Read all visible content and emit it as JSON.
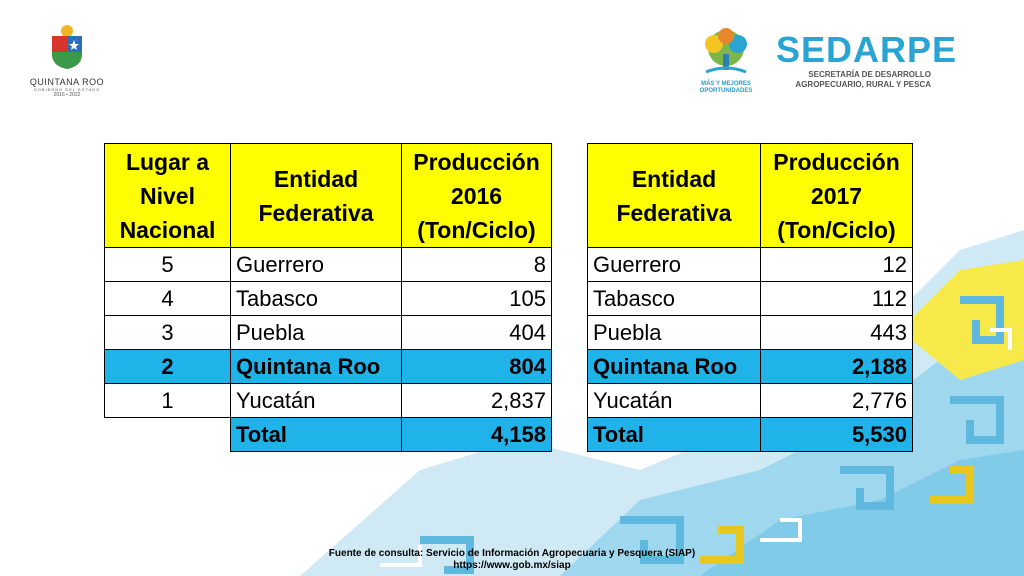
{
  "logos": {
    "left_name": "QUINTANA ROO",
    "left_sub": "GOBIERNO DEL ESTADO",
    "left_years": "2016 • 2022",
    "tree_line1": "MÁS Y MEJORES",
    "tree_line2": "OPORTUNIDADES",
    "sedarpe_title": "SEDARPE",
    "sedarpe_line1": "SECRETARÍA DE DESARROLLO",
    "sedarpe_line2": "AGROPECUARIO, RURAL Y PESCA"
  },
  "table2016": {
    "headers": [
      "Lugar a Nivel Nacional",
      "Entidad Federativa",
      "Producción 2016 (Ton/Ciclo)"
    ],
    "rows": [
      {
        "rank": "5",
        "entity": "Guerrero",
        "value": "8"
      },
      {
        "rank": "4",
        "entity": "Tabasco",
        "value": "105"
      },
      {
        "rank": "3",
        "entity": "Puebla",
        "value": "404"
      },
      {
        "rank": "2",
        "entity": "Quintana Roo",
        "value": "804"
      },
      {
        "rank": "1",
        "entity": "Yucatán",
        "value": "2,837"
      }
    ],
    "total_label": "Total",
    "total_value": "4,158"
  },
  "table2017": {
    "headers": [
      "Entidad Federativa",
      "Producción 2017 (Ton/Ciclo)"
    ],
    "rows": [
      {
        "entity": "Guerrero",
        "value": "12"
      },
      {
        "entity": "Tabasco",
        "value": "112"
      },
      {
        "entity": "Puebla",
        "value": "443"
      },
      {
        "entity": "Quintana Roo",
        "value": "2,188"
      },
      {
        "entity": "Yucatán",
        "value": "2,776"
      }
    ],
    "total_label": "Total",
    "total_value": "5,530"
  },
  "source": {
    "line1": "Fuente de consulta: Servicio de Información Agropecuaria y Pesquera (SIAP)",
    "line2": "https://www.gob.mx/siap"
  },
  "colors": {
    "header_yellow": "#ffff00",
    "highlight_blue": "#1fb3ea",
    "brand_blue": "#2aa4d2",
    "pattern_light_blue": "#9fd7ee",
    "pattern_yellow": "#f7e94a"
  }
}
